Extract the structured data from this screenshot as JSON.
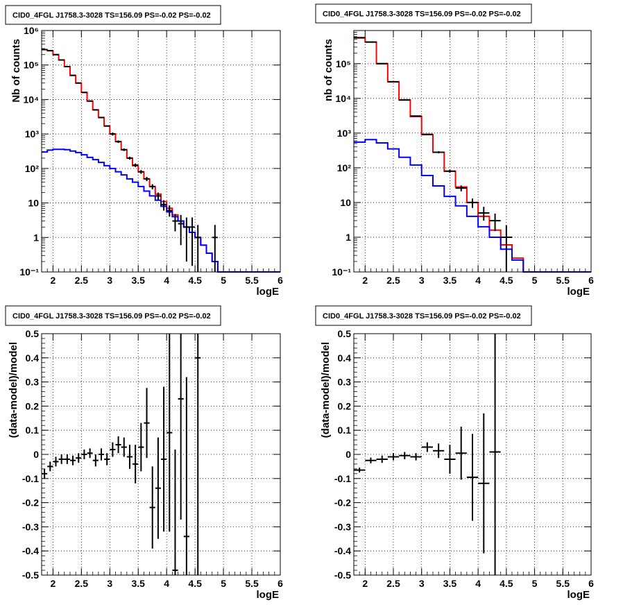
{
  "chart_data": [
    {
      "type": "histogram",
      "title": "CID0_4FGL J1758.3-3028 TS=156.09 PS=-0.02 PS=-0.02",
      "xlabel": "logE",
      "ylabel": "Nb of counts",
      "xlim": [
        1.8,
        6
      ],
      "ylim": [
        0.1,
        1000000
      ],
      "yscale": "log",
      "grid": true,
      "x_ticks": [
        "2",
        "2.5",
        "3",
        "3.5",
        "4",
        "4.5",
        "5",
        "5.5",
        "6"
      ],
      "y_ticks": [
        "10^-1",
        "1",
        "10",
        "10^2",
        "10^3",
        "10^4",
        "10^5",
        "10^6"
      ],
      "bin_edges": [
        1.8,
        1.9,
        2.0,
        2.1,
        2.2,
        2.3,
        2.4,
        2.5,
        2.6,
        2.7,
        2.8,
        2.9,
        3.0,
        3.1,
        3.2,
        3.3,
        3.4,
        3.5,
        3.6,
        3.7,
        3.8,
        3.9,
        4.0,
        4.1,
        4.2,
        4.3,
        4.4,
        4.5,
        4.6,
        4.7,
        4.8,
        4.9,
        5.0,
        5.1,
        5.2,
        5.3,
        5.4,
        5.5,
        5.6,
        5.7,
        5.8,
        5.9,
        6.0
      ],
      "series": [
        {
          "color": "#ff0000",
          "values": [
            280000,
            260000,
            200000,
            140000,
            90000,
            50000,
            30000,
            16000,
            9000,
            5000,
            3000,
            1700,
            1000,
            600,
            350,
            200,
            120,
            80,
            50,
            30,
            18,
            11,
            7,
            4.5,
            3,
            2,
            1.4,
            1,
            0.6,
            0.35,
            0.2,
            0.1,
            0.1,
            0.1,
            0.1,
            0.1,
            0.1,
            0.1,
            0.1,
            0.1,
            0.1,
            0.1
          ]
        },
        {
          "color": "#0000ff",
          "values": [
            300,
            340,
            360,
            360,
            350,
            320,
            290,
            250,
            210,
            180,
            150,
            120,
            100,
            80,
            65,
            50,
            40,
            30,
            22,
            16,
            12,
            8,
            5.5,
            4,
            3,
            2,
            1.4,
            1,
            0.6,
            0.35,
            0.2,
            0.1,
            0.1,
            0.1,
            0.1,
            0.1,
            0.1,
            0.1,
            0.1,
            0.1,
            0.1,
            0.1
          ]
        }
      ],
      "data_points": [
        {
          "x": 1.85,
          "y": 280000,
          "ylo": 280000,
          "yhi": 280000
        },
        {
          "x": 1.95,
          "y": 260000,
          "ylo": 260000,
          "yhi": 260000
        },
        {
          "x": 2.05,
          "y": 200000,
          "ylo": 200000,
          "yhi": 200000
        },
        {
          "x": 2.15,
          "y": 140000,
          "ylo": 140000,
          "yhi": 140000
        },
        {
          "x": 2.25,
          "y": 90000,
          "ylo": 90000,
          "yhi": 90000
        },
        {
          "x": 2.35,
          "y": 50000,
          "ylo": 50000,
          "yhi": 50000
        },
        {
          "x": 2.45,
          "y": 30000,
          "ylo": 30000,
          "yhi": 30000
        },
        {
          "x": 2.55,
          "y": 16000,
          "ylo": 16000,
          "yhi": 16000
        },
        {
          "x": 2.65,
          "y": 9000,
          "ylo": 9000,
          "yhi": 9000
        },
        {
          "x": 2.75,
          "y": 5000,
          "ylo": 5000,
          "yhi": 5000
        },
        {
          "x": 2.85,
          "y": 3000,
          "ylo": 3000,
          "yhi": 3000
        },
        {
          "x": 2.95,
          "y": 1700,
          "ylo": 1700,
          "yhi": 1700
        },
        {
          "x": 3.05,
          "y": 1000,
          "ylo": 900,
          "yhi": 1100
        },
        {
          "x": 3.15,
          "y": 600,
          "ylo": 550,
          "yhi": 650
        },
        {
          "x": 3.25,
          "y": 350,
          "ylo": 320,
          "yhi": 380
        },
        {
          "x": 3.35,
          "y": 200,
          "ylo": 180,
          "yhi": 220
        },
        {
          "x": 3.45,
          "y": 125,
          "ylo": 110,
          "yhi": 140
        },
        {
          "x": 3.55,
          "y": 80,
          "ylo": 70,
          "yhi": 90
        },
        {
          "x": 3.65,
          "y": 50,
          "ylo": 43,
          "yhi": 57
        },
        {
          "x": 3.75,
          "y": 30,
          "ylo": 25,
          "yhi": 35
        },
        {
          "x": 3.85,
          "y": 16,
          "ylo": 12,
          "yhi": 20
        },
        {
          "x": 3.95,
          "y": 9,
          "ylo": 6,
          "yhi": 12
        },
        {
          "x": 4.05,
          "y": 6,
          "ylo": 4,
          "yhi": 8.5
        },
        {
          "x": 4.15,
          "y": 3,
          "ylo": 1.5,
          "yhi": 4.8
        },
        {
          "x": 4.25,
          "y": 2.5,
          "ylo": 0.6,
          "yhi": 4.5
        },
        {
          "x": 4.35,
          "y": 2,
          "ylo": 0.2,
          "yhi": 3.8
        },
        {
          "x": 4.45,
          "y": 2,
          "ylo": 0.15,
          "yhi": 3.8
        },
        {
          "x": 4.55,
          "y": 1,
          "ylo": 0.1,
          "yhi": 2.3
        },
        {
          "x": 4.85,
          "y": 1,
          "ylo": 0.1,
          "yhi": 2.3
        }
      ]
    },
    {
      "type": "histogram",
      "title": "CID0_4FGL J1758.3-3028 TS=156.09 PS=-0.02 PS=-0.02",
      "xlabel": "logE",
      "ylabel": "nb of counts",
      "xlim": [
        1.8,
        6
      ],
      "ylim": [
        0.1,
        900000
      ],
      "yscale": "log",
      "grid": true,
      "x_ticks": [
        "2",
        "2.5",
        "3",
        "3.5",
        "4",
        "4.5",
        "5",
        "5.5",
        "6"
      ],
      "y_ticks": [
        "10^-1",
        "1",
        "10",
        "10^2",
        "10^3",
        "10^4",
        "10^5"
      ],
      "bin_edges": [
        1.8,
        2.0,
        2.2,
        2.4,
        2.6,
        2.8,
        3.0,
        3.2,
        3.4,
        3.6,
        3.8,
        4.0,
        4.2,
        4.4,
        4.6,
        4.8,
        5.0,
        5.2,
        5.4,
        5.6,
        5.8,
        6.0
      ],
      "series": [
        {
          "color": "#ff0000",
          "values": [
            550000,
            420000,
            100000,
            30000,
            9000,
            3000,
            900,
            280,
            80,
            28,
            10,
            4,
            1.6,
            0.6,
            0.25,
            0.1,
            0.1,
            0.1,
            0.1,
            0.1,
            0.1
          ]
        },
        {
          "color": "#0000ff",
          "values": [
            550,
            650,
            520,
            350,
            200,
            120,
            60,
            30,
            15,
            8,
            4,
            2,
            1,
            0.45,
            0.22,
            0.1,
            0.1,
            0.1,
            0.1,
            0.1,
            0.1
          ]
        }
      ],
      "data_points": [
        {
          "x": 1.9,
          "y": 560000,
          "ylo": 560000,
          "yhi": 560000
        },
        {
          "x": 2.1,
          "y": 420000,
          "ylo": 420000,
          "yhi": 420000
        },
        {
          "x": 2.3,
          "y": 100000,
          "ylo": 100000,
          "yhi": 100000
        },
        {
          "x": 2.5,
          "y": 30000,
          "ylo": 30000,
          "yhi": 30000
        },
        {
          "x": 2.7,
          "y": 9000,
          "ylo": 9000,
          "yhi": 9000
        },
        {
          "x": 2.9,
          "y": 3100,
          "ylo": 3000,
          "yhi": 3200
        },
        {
          "x": 3.1,
          "y": 920,
          "ylo": 880,
          "yhi": 960
        },
        {
          "x": 3.3,
          "y": 280,
          "ylo": 260,
          "yhi": 300
        },
        {
          "x": 3.5,
          "y": 80,
          "ylo": 72,
          "yhi": 88
        },
        {
          "x": 3.7,
          "y": 26,
          "ylo": 21,
          "yhi": 31
        },
        {
          "x": 3.9,
          "y": 10,
          "ylo": 7,
          "yhi": 13
        },
        {
          "x": 4.1,
          "y": 5,
          "ylo": 3,
          "yhi": 7.5
        },
        {
          "x": 4.3,
          "y": 3,
          "ylo": 1.5,
          "yhi": 4.8
        },
        {
          "x": 4.5,
          "y": 1,
          "ylo": 0.1,
          "yhi": 2.2
        }
      ]
    },
    {
      "type": "scatter",
      "title": "CID0_4FGL J1758.3-3028 TS=156.09 PS=-0.02 PS=-0.02",
      "xlabel": "logE",
      "ylabel": "(data-model)/model",
      "xlim": [
        1.8,
        6
      ],
      "ylim": [
        -0.5,
        0.5
      ],
      "grid": true,
      "x_ticks": [
        "2",
        "2.5",
        "3",
        "3.5",
        "4",
        "4.5",
        "5",
        "5.5",
        "6"
      ],
      "y_ticks": [
        "-0.5",
        "-0.4",
        "-0.3",
        "-0.2",
        "-0.1",
        "0",
        "0.1",
        "0.2",
        "0.3",
        "0.4",
        "0.5"
      ],
      "points": [
        {
          "x": 1.85,
          "xerr": 0.05,
          "y": -0.08,
          "yerr": 0.02
        },
        {
          "x": 1.95,
          "xerr": 0.05,
          "y": -0.05,
          "yerr": 0.02
        },
        {
          "x": 2.05,
          "xerr": 0.05,
          "y": -0.03,
          "yerr": 0.02
        },
        {
          "x": 2.15,
          "xerr": 0.05,
          "y": -0.02,
          "yerr": 0.02
        },
        {
          "x": 2.25,
          "xerr": 0.05,
          "y": -0.02,
          "yerr": 0.02
        },
        {
          "x": 2.35,
          "xerr": 0.05,
          "y": -0.025,
          "yerr": 0.02
        },
        {
          "x": 2.45,
          "xerr": 0.05,
          "y": -0.015,
          "yerr": 0.02
        },
        {
          "x": 2.55,
          "xerr": 0.05,
          "y": 0.0,
          "yerr": 0.02
        },
        {
          "x": 2.65,
          "xerr": 0.05,
          "y": 0.005,
          "yerr": 0.02
        },
        {
          "x": 2.75,
          "xerr": 0.05,
          "y": -0.025,
          "yerr": 0.025
        },
        {
          "x": 2.85,
          "xerr": 0.05,
          "y": 0.0,
          "yerr": 0.025
        },
        {
          "x": 2.95,
          "xerr": 0.05,
          "y": -0.02,
          "yerr": 0.025
        },
        {
          "x": 3.05,
          "xerr": 0.05,
          "y": 0.02,
          "yerr": 0.03
        },
        {
          "x": 3.15,
          "xerr": 0.05,
          "y": 0.04,
          "yerr": 0.035
        },
        {
          "x": 3.25,
          "xerr": 0.05,
          "y": 0.03,
          "yerr": 0.04
        },
        {
          "x": 3.35,
          "xerr": 0.05,
          "y": -0.01,
          "yerr": 0.05
        },
        {
          "x": 3.45,
          "xerr": 0.05,
          "y": -0.04,
          "yerr": 0.08
        },
        {
          "x": 3.55,
          "xerr": 0.05,
          "y": 0.03,
          "yerr": 0.1
        },
        {
          "x": 3.65,
          "xerr": 0.05,
          "y": 0.13,
          "yerr": 0.145
        },
        {
          "x": 3.75,
          "xerr": 0.05,
          "y": -0.22,
          "yerr": 0.17
        },
        {
          "x": 3.85,
          "xerr": 0.05,
          "y": -0.14,
          "yerr": 0.21
        },
        {
          "x": 3.95,
          "xerr": 0.05,
          "y": -0.02,
          "yerr": 0.3
        },
        {
          "x": 4.05,
          "xerr": 0.05,
          "y": 0.09,
          "yerr": 0.41
        },
        {
          "x": 4.15,
          "xerr": 0.05,
          "y": -0.48,
          "yerr": 0.5
        },
        {
          "x": 4.25,
          "xerr": 0.05,
          "y": 0.23,
          "yerr": 0.5
        },
        {
          "x": 4.35,
          "xerr": 0.05,
          "y": -0.34,
          "yerr": 0.66
        },
        {
          "x": 4.55,
          "xerr": 0.05,
          "y": 0.4,
          "yerr": 0.9
        }
      ]
    },
    {
      "type": "scatter",
      "title": "CID0_4FGL J1758.3-3028 TS=156.09 PS=-0.02 PS=-0.02",
      "xlabel": "logE",
      "ylabel": "(data-model)/model",
      "xlim": [
        1.8,
        6
      ],
      "ylim": [
        -0.5,
        0.5
      ],
      "grid": true,
      "x_ticks": [
        "2",
        "2.5",
        "3",
        "3.5",
        "4",
        "4.5",
        "5",
        "5.5",
        "6"
      ],
      "y_ticks": [
        "-0.5",
        "-0.4",
        "-0.3",
        "-0.2",
        "-0.1",
        "0",
        "0.1",
        "0.2",
        "0.3",
        "0.4",
        "0.5"
      ],
      "points": [
        {
          "x": 1.9,
          "xerr": 0.1,
          "y": -0.065,
          "yerr": 0.01
        },
        {
          "x": 2.1,
          "xerr": 0.1,
          "y": -0.025,
          "yerr": 0.012
        },
        {
          "x": 2.3,
          "xerr": 0.1,
          "y": -0.02,
          "yerr": 0.015
        },
        {
          "x": 2.5,
          "xerr": 0.1,
          "y": -0.01,
          "yerr": 0.015
        },
        {
          "x": 2.7,
          "xerr": 0.1,
          "y": -0.005,
          "yerr": 0.015
        },
        {
          "x": 2.9,
          "xerr": 0.1,
          "y": -0.01,
          "yerr": 0.015
        },
        {
          "x": 3.1,
          "xerr": 0.1,
          "y": 0.03,
          "yerr": 0.02
        },
        {
          "x": 3.3,
          "xerr": 0.1,
          "y": 0.015,
          "yerr": 0.03
        },
        {
          "x": 3.5,
          "xerr": 0.1,
          "y": -0.02,
          "yerr": 0.06
        },
        {
          "x": 3.7,
          "xerr": 0.1,
          "y": 0.005,
          "yerr": 0.11
        },
        {
          "x": 3.9,
          "xerr": 0.1,
          "y": -0.095,
          "yerr": 0.18
        },
        {
          "x": 4.1,
          "xerr": 0.1,
          "y": -0.12,
          "yerr": 0.29
        },
        {
          "x": 4.3,
          "xerr": 0.1,
          "y": 0.01,
          "yerr": 0.55
        }
      ]
    }
  ]
}
